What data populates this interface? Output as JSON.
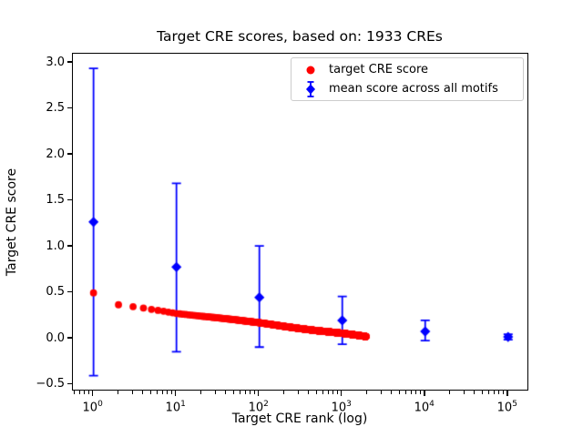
{
  "figure": {
    "title": "Target CRE scores, based on: 1933 CREs",
    "xlabel": "Target CRE rank (log)",
    "ylabel": "Target CRE score",
    "background_color": "#ffffff"
  },
  "axes": {
    "x_scale": "log",
    "x_tick_exponents": [
      0,
      1,
      2,
      3,
      4,
      5
    ],
    "x_lim_log10": [
      -0.249,
      5.233
    ],
    "y_tick_values": [
      3.0,
      2.5,
      2.0,
      1.5,
      1.0,
      0.5,
      0.0,
      -0.5
    ],
    "y_tick_labels": [
      "3.0",
      "2.5",
      "2.0",
      "1.5",
      "1.0",
      "0.5",
      "0.0",
      "−0.5"
    ],
    "y_lim": [
      -0.553,
      3.1
    ],
    "spine_color": "#000000",
    "grid": "off"
  },
  "legend": {
    "position": "upper right",
    "entries": [
      {
        "label": "target CRE score",
        "marker": "circle",
        "color": "#ff0000"
      },
      {
        "label": "mean score across all motifs",
        "marker": "diamond-errorbar",
        "color": "#0000ff"
      }
    ]
  },
  "chart_data": {
    "type": "scatter",
    "title": "Target CRE scores, based on: 1933 CREs",
    "xlabel": "Target CRE rank (log)",
    "ylabel": "Target CRE score",
    "x_scale": "log",
    "xlim": [
      0.56,
      171000
    ],
    "ylim": [
      -0.55,
      3.1
    ],
    "legend_position": "upper right",
    "series": [
      {
        "name": "target CRE score",
        "marker": "circle",
        "color": "#ff0000",
        "n_points": 1933,
        "x_range": [
          1,
          1933
        ],
        "note": "dense scatter at integer ranks 1-1933; values sampled from plot as control points [rank, score]",
        "control_points": [
          [
            1,
            0.5
          ],
          [
            2,
            0.37
          ],
          [
            3,
            0.35
          ],
          [
            4,
            0.335
          ],
          [
            5,
            0.32
          ],
          [
            7,
            0.3
          ],
          [
            10,
            0.275
          ],
          [
            15,
            0.258
          ],
          [
            20,
            0.246
          ],
          [
            30,
            0.23
          ],
          [
            50,
            0.208
          ],
          [
            70,
            0.192
          ],
          [
            100,
            0.175
          ],
          [
            150,
            0.152
          ],
          [
            200,
            0.135
          ],
          [
            300,
            0.113
          ],
          [
            500,
            0.088
          ],
          [
            700,
            0.075
          ],
          [
            1000,
            0.06
          ],
          [
            1300,
            0.047
          ],
          [
            1600,
            0.036
          ],
          [
            1933,
            0.025
          ]
        ]
      },
      {
        "name": "mean score across all motifs",
        "marker": "diamond",
        "color": "#0000ff",
        "error_bars": true,
        "points": [
          {
            "x": 1,
            "y": 1.27,
            "err_low": -0.4,
            "err_high": 2.94
          },
          {
            "x": 10,
            "y": 0.78,
            "err_low": -0.14,
            "err_high": 1.69
          },
          {
            "x": 100,
            "y": 0.45,
            "err_low": -0.09,
            "err_high": 1.01
          },
          {
            "x": 1000,
            "y": 0.2,
            "err_low": -0.06,
            "err_high": 0.46
          },
          {
            "x": 10000,
            "y": 0.08,
            "err_low": -0.02,
            "err_high": 0.2
          },
          {
            "x": 100000,
            "y": 0.02,
            "err_low": -0.01,
            "err_high": 0.05
          }
        ]
      }
    ]
  }
}
